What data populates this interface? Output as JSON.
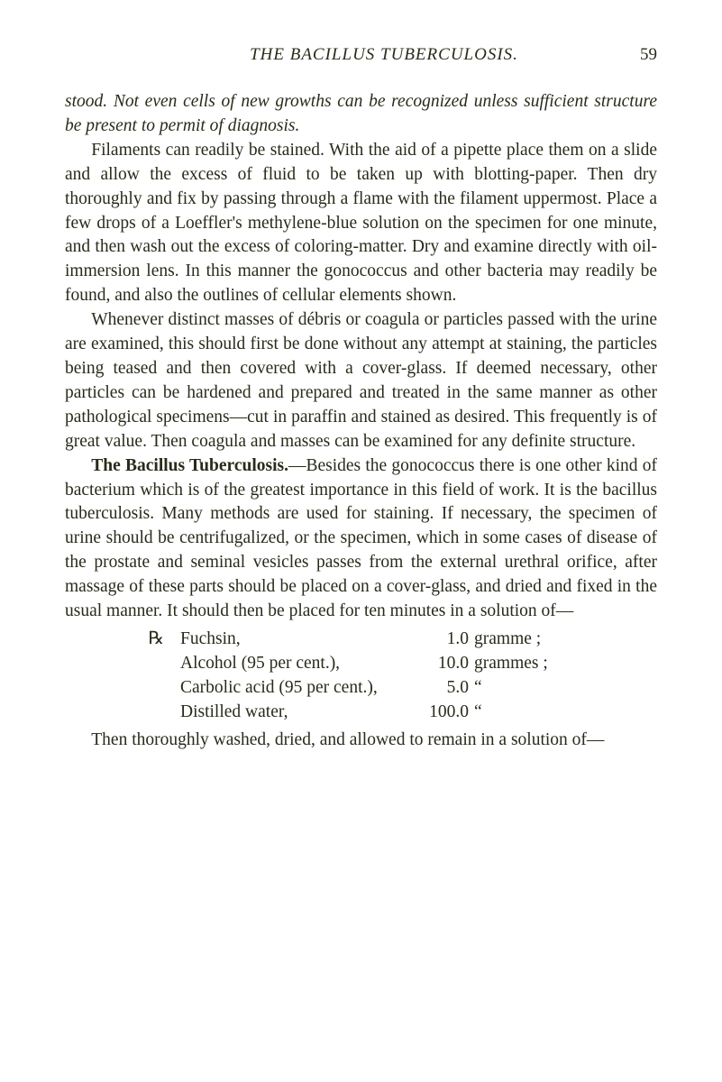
{
  "header": {
    "title": "THE BACILLUS TUBERCULOSIS.",
    "pageNumber": "59"
  },
  "para1_italic": "stood.   Not even cells of new growths can be recognized unless sufficient structure be present to permit of diagnosis.",
  "para2": "Filaments can readily be stained.   With the aid of a pipette place them on a slide and allow the excess of fluid to be taken up with blotting-paper.   Then dry thoroughly and fix by passing through a flame with the filament uppermost. Place a few drops of a Loeffler's methylene-blue solution on the specimen for one minute, and then wash out the excess of coloring-matter.   Dry and examine directly with oil-immersion lens.   In this manner the gonococcus and other bacteria may readily be found, and also the outlines of cellular elements shown.",
  "para3": "Whenever distinct masses of débris or coagula or particles passed with the urine are examined, this should first be done without any attempt at staining, the particles being teased and then covered with a cover-glass.   If deemed necessary, other particles can be hardened and prepared and treated in the same manner as other pathological specimens—cut in paraffin and stained as desired.   This frequently is of great value. Then coagula and masses can be examined for any definite structure.",
  "para4_bold": "The Bacillus Tuberculosis.",
  "para4_rest": "—Besides the gonococcus there is one other kind of bacterium which is of the greatest importance in this field of work.   It is the bacillus tuberculosis. Many methods are used for staining.   If necessary, the specimen of urine should be centrifugalized, or the specimen, which in some cases of disease of the prostate and seminal vesicles passes from the external urethral orifice, after massage of these parts should be placed on a cover-glass, and dried and fixed in the usual manner.   It should then be placed for ten minutes in  a solution of—",
  "recipe": {
    "symbol": "℞",
    "lines": [
      {
        "name": "Fuchsin,",
        "value": "1.0",
        "unit": "gramme ;"
      },
      {
        "name": "Alcohol (95 per cent.),",
        "value": "10.0",
        "unit": "grammes ;"
      },
      {
        "name": "Carbolic acid (95 per cent.),",
        "value": "5.0",
        "unit": "      “"
      },
      {
        "name": "Distilled water,",
        "value": "100.0",
        "unit": "      “"
      }
    ]
  },
  "para5": "Then thoroughly washed, dried, and allowed to remain in a solution of—"
}
